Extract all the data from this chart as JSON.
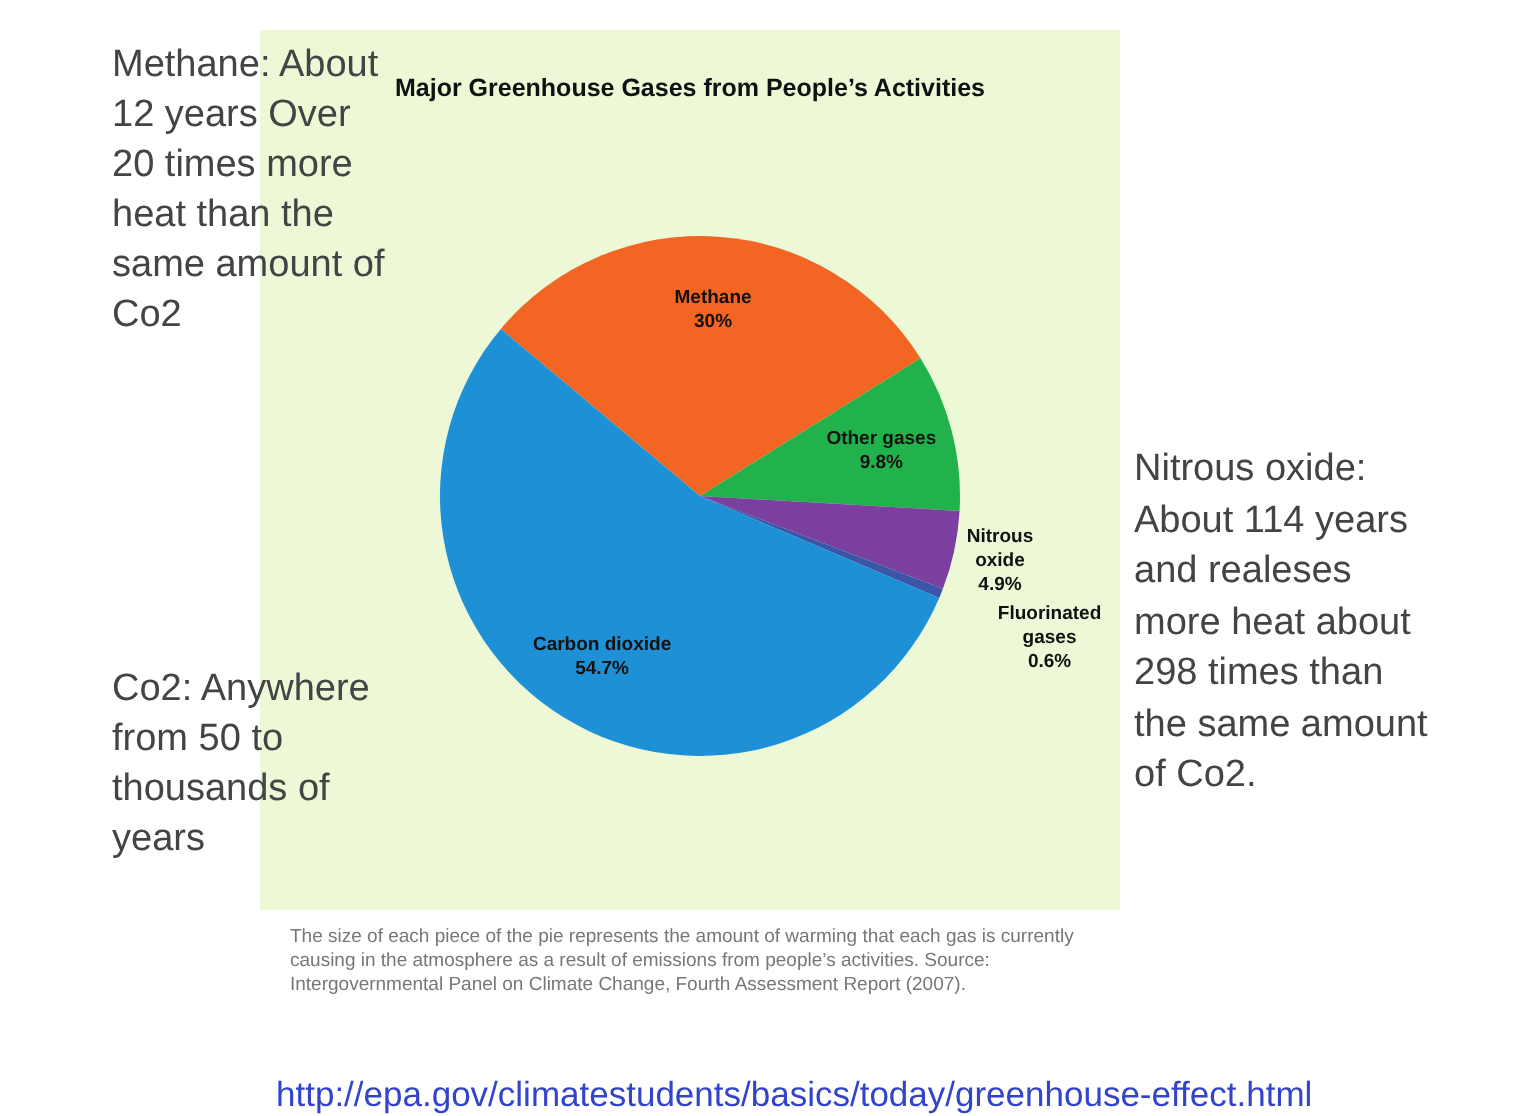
{
  "chart_data": {
    "type": "pie",
    "title": "Major Greenhouse Gases from People’s Activities",
    "categories": [
      "Methane",
      "Other gases",
      "Nitrous oxide",
      "Fluorinated gases",
      "Carbon dioxide"
    ],
    "values": [
      30,
      9.8,
      4.9,
      0.6,
      54.7
    ],
    "value_labels": [
      "30%",
      "9.8%",
      "4.9%",
      "0.6%",
      "54.7%"
    ],
    "colors": [
      "#f26522",
      "#22b24c",
      "#7b3fa0",
      "#3a56a8",
      "#1e90d6"
    ],
    "legend": false,
    "annotations": [
      "Methane: About 12 years Over 20 times more heat than the same amount of Co2",
      "Co2: Anywhere from 50 to thousands of years",
      "Nitrous oxide: About 114 years and realeses more heat about 298 times than the same amount of Co2.",
      "The size of each piece of the pie represents the amount of warming that each gas is currently causing in the atmosphere as a result of emissions from people’s activities. Source: Intergovernmental Panel on Climate Change, Fourth Assessment Report (2007).",
      "http://epa.gov/climatestudents/basics/today/greenhouse-effect.html"
    ]
  }
}
